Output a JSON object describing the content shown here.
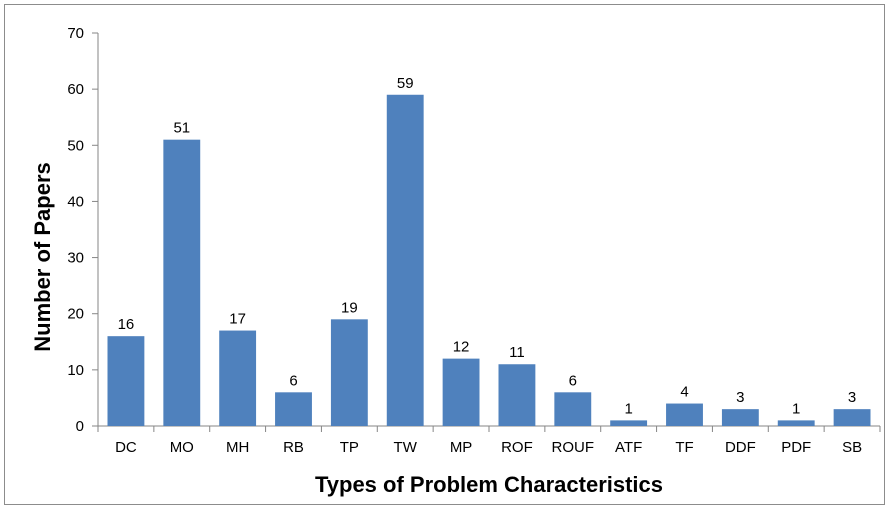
{
  "chart_data": {
    "type": "bar",
    "categories": [
      "DC",
      "MO",
      "MH",
      "RB",
      "TP",
      "TW",
      "MP",
      "ROF",
      "ROUF",
      "ATF",
      "TF",
      "DDF",
      "PDF",
      "SB"
    ],
    "values": [
      16,
      51,
      17,
      6,
      19,
      59,
      12,
      11,
      6,
      1,
      4,
      3,
      1,
      3
    ],
    "data_labels": [
      "16",
      "51",
      "17",
      "6",
      "19",
      "59",
      "12",
      "11",
      "6",
      "1",
      "4",
      "3",
      "1",
      "3"
    ],
    "title": "",
    "xlabel": "Types of Problem Characteristics",
    "ylabel": "Number of Papers",
    "ylim": [
      0,
      70
    ],
    "yticks": [
      "0",
      "10",
      "20",
      "30",
      "40",
      "50",
      "60",
      "70"
    ],
    "grid": false,
    "legend": "none",
    "bar_color": "#4f81bd"
  }
}
